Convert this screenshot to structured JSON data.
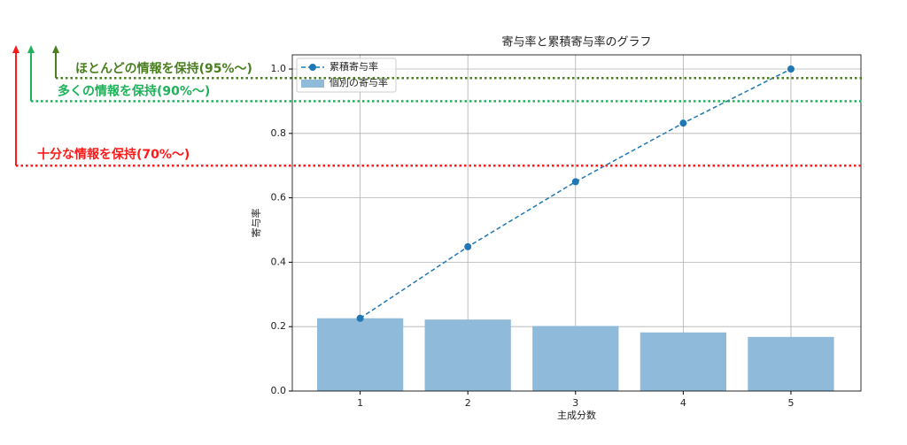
{
  "chart_data": {
    "type": "bar_line",
    "title": "寄与率と累積寄与率のグラフ",
    "x_label": "主成分数",
    "y_label": "寄与率",
    "x": [
      1,
      2,
      3,
      4,
      5
    ],
    "xlim": [
      0.37,
      5.65
    ],
    "xticks": [
      1,
      2,
      3,
      4,
      5
    ],
    "ylim": [
      0,
      1.044
    ],
    "yticks": [
      {
        "value": 0,
        "label": "0.0"
      },
      {
        "value": 0.2,
        "label": "0.2"
      },
      {
        "value": 0.4,
        "label": "0.4"
      },
      {
        "value": 0.6,
        "label": "0.6"
      },
      {
        "value": 0.8,
        "label": "0.8"
      },
      {
        "value": 1,
        "label": "1.0"
      }
    ],
    "grid": true,
    "legend": "upper left",
    "series": [
      {
        "name": "累積寄与率",
        "type": "line",
        "color": "#1f77b4",
        "values": [
          0.226,
          0.448,
          0.65,
          0.832,
          1.0
        ]
      },
      {
        "name": "個別の寄与率",
        "type": "bar",
        "color": "#8fbada",
        "values": [
          0.226,
          0.222,
          0.202,
          0.182,
          0.168
        ]
      }
    ],
    "thresholds": [
      {
        "value": 0.7,
        "label": "十分な情報を保持(70%〜)",
        "color": "#ff1a1a"
      },
      {
        "value": 0.9,
        "label": "多くの情報を保持(90%〜)",
        "color": "#1fb25a"
      },
      {
        "value": 0.95,
        "label": "ほとんどの情報を保持(95%〜)",
        "color": "#4a7f1f"
      }
    ]
  }
}
